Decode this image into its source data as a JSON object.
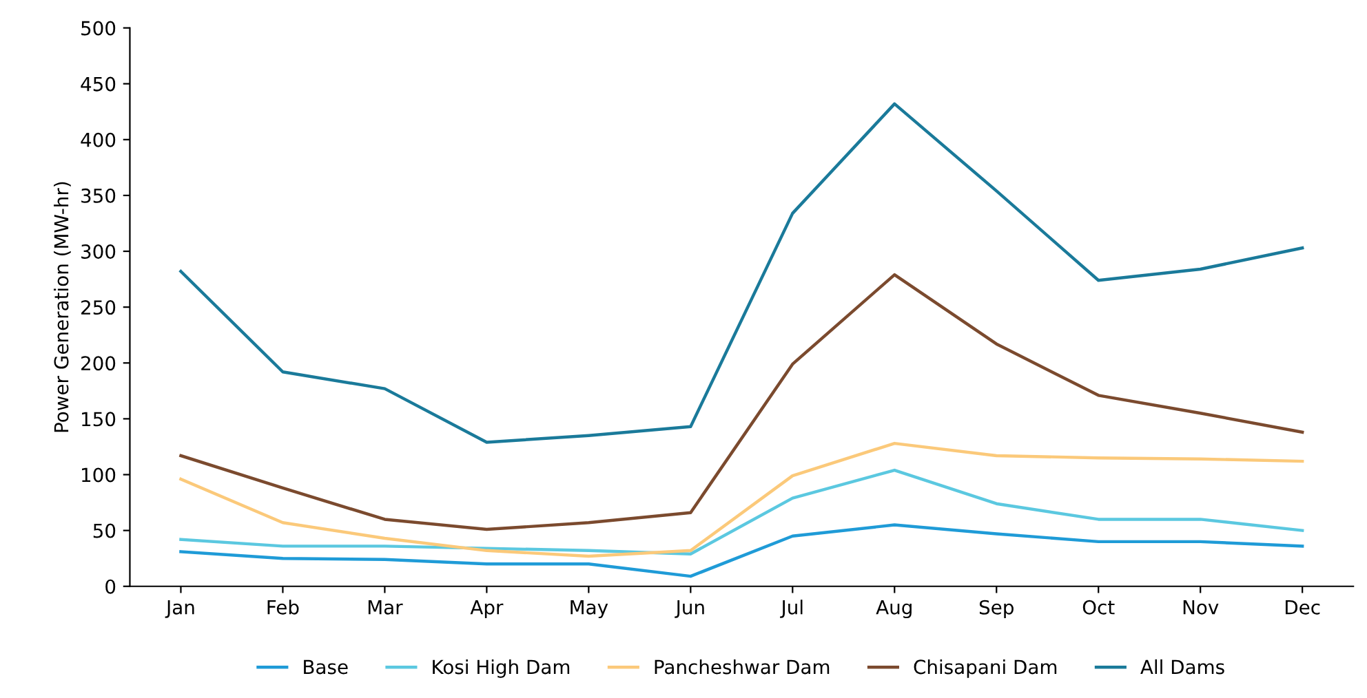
{
  "chart_data": {
    "type": "line",
    "ylabel": "Power Generation (MW-hr)",
    "categories": [
      "Jan",
      "Feb",
      "Mar",
      "Apr",
      "May",
      "Jun",
      "Jul",
      "Aug",
      "Sep",
      "Oct",
      "Nov",
      "Dec"
    ],
    "ylim": [
      0,
      500
    ],
    "yticks": [
      0,
      50,
      100,
      150,
      200,
      250,
      300,
      350,
      400,
      450,
      500
    ],
    "grid": false,
    "legend": "bottom",
    "marker": "none",
    "line_style": "solid",
    "series": [
      {
        "name": "Base",
        "color": "#1f9bd7",
        "values": [
          31,
          25,
          24,
          20,
          20,
          9,
          45,
          55,
          47,
          40,
          40,
          36
        ]
      },
      {
        "name": "Kosi High Dam",
        "color": "#5bc8e0",
        "values": [
          42,
          36,
          36,
          34,
          32,
          29,
          79,
          104,
          74,
          60,
          60,
          50
        ]
      },
      {
        "name": "Pancheshwar Dam",
        "color": "#fbc97a",
        "values": [
          96,
          57,
          43,
          32,
          27,
          32,
          99,
          128,
          117,
          115,
          114,
          112
        ]
      },
      {
        "name": "Chisapani Dam",
        "color": "#7b4a2e",
        "values": [
          117,
          88,
          60,
          51,
          57,
          66,
          199,
          279,
          217,
          171,
          155,
          138
        ]
      },
      {
        "name": "All Dams",
        "color": "#1a7a9a",
        "values": [
          282,
          192,
          177,
          129,
          135,
          143,
          334,
          432,
          354,
          274,
          284,
          303
        ]
      }
    ]
  }
}
